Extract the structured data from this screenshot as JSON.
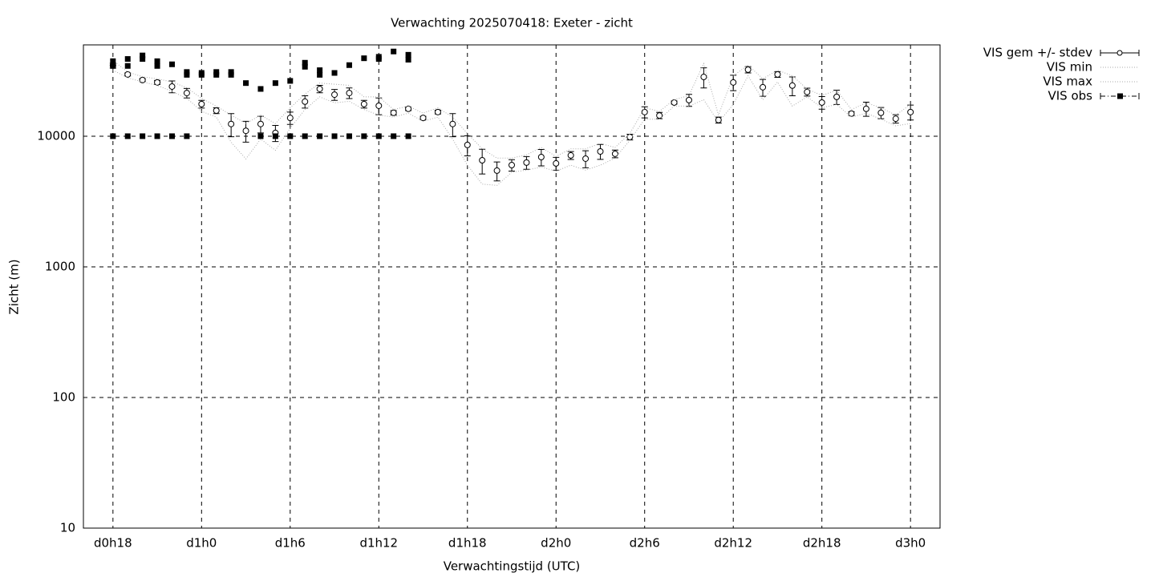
{
  "chart_data": {
    "type": "errorbar",
    "title": "Verwachting 2025070418: Exeter - zicht",
    "x_label": "Verwachtingstijd (UTC)",
    "y_label": "Zicht (m)",
    "log_y": true,
    "grid": true,
    "legend": "outside-top-right",
    "xlim": [
      16,
      74
    ],
    "ylim": [
      10,
      50000
    ],
    "xticks": [
      {
        "value": 18,
        "label": "d0h18"
      },
      {
        "value": 24,
        "label": "d1h0"
      },
      {
        "value": 30,
        "label": "d1h6"
      },
      {
        "value": 36,
        "label": "d1h12"
      },
      {
        "value": 42,
        "label": "d1h18"
      },
      {
        "value": 48,
        "label": "d2h0"
      },
      {
        "value": 54,
        "label": "d2h6"
      },
      {
        "value": 60,
        "label": "d2h12"
      },
      {
        "value": 66,
        "label": "d2h18"
      },
      {
        "value": 72,
        "label": "d3h0"
      }
    ],
    "yticks": [
      10,
      100,
      1000,
      10000
    ],
    "series": [
      {
        "name": "VIS gem +/- stdev",
        "color": "#000000",
        "style": "errorbar",
        "x": [
          18,
          19,
          20,
          21,
          22,
          23,
          24,
          25,
          26,
          27,
          28,
          29,
          30,
          31,
          32,
          33,
          34,
          35,
          36,
          37,
          38,
          39,
          40,
          41,
          42,
          43,
          44,
          45,
          46,
          47,
          48,
          49,
          50,
          51,
          52,
          53,
          54,
          55,
          56,
          57,
          58,
          59,
          60,
          61,
          62,
          63,
          64,
          65,
          66,
          67,
          68,
          69,
          70,
          71,
          72
        ],
        "values": [
          34700,
          29700,
          26900,
          25800,
          24000,
          21400,
          17600,
          15700,
          12400,
          11000,
          12400,
          10600,
          13800,
          18400,
          23000,
          20800,
          21400,
          17600,
          17100,
          15100,
          16200,
          13800,
          15300,
          12400,
          8570,
          6540,
          5450,
          6010,
          6280,
          6920,
          6190,
          7130,
          6730,
          7640,
          7330,
          9860,
          15300,
          14400,
          18100,
          18900,
          28400,
          13300,
          25800,
          32300,
          23700,
          29700,
          24400,
          21800,
          18100,
          20000,
          14900,
          16200,
          15100,
          13600,
          15300
        ],
        "errors": [
          1500,
          800,
          700,
          900,
          2500,
          1800,
          1200,
          800,
          2500,
          2000,
          1800,
          1500,
          1500,
          2000,
          1500,
          2000,
          2000,
          1200,
          2500,
          600,
          500,
          400,
          500,
          2500,
          1500,
          1400,
          900,
          600,
          700,
          1000,
          700,
          500,
          1000,
          1000,
          500,
          500,
          1500,
          800,
          500,
          2000,
          5000,
          700,
          3500,
          1800,
          3500,
          1500,
          4000,
          1500,
          2000,
          2500,
          500,
          2000,
          1500,
          1000,
          2000
        ]
      },
      {
        "name": "VIS min",
        "color": "#aaaaaa",
        "style": "dotted",
        "x": [
          18,
          19,
          20,
          21,
          22,
          23,
          24,
          25,
          26,
          27,
          28,
          29,
          30,
          31,
          32,
          33,
          34,
          35,
          36,
          37,
          38,
          39,
          40,
          41,
          42,
          43,
          44,
          45,
          46,
          47,
          48,
          49,
          50,
          51,
          52,
          53,
          54,
          55,
          56,
          57,
          58,
          59,
          60,
          61,
          62,
          63,
          64,
          65,
          66,
          67,
          68,
          69,
          70,
          71,
          72
        ],
        "values": [
          32000,
          28000,
          26000,
          24500,
          22000,
          19500,
          15500,
          14000,
          9000,
          6700,
          9500,
          7800,
          11500,
          16000,
          20000,
          18000,
          18500,
          16000,
          14500,
          14000,
          15000,
          13000,
          14000,
          9500,
          6000,
          4300,
          4200,
          5300,
          5500,
          5800,
          5400,
          6000,
          5500,
          6000,
          6800,
          9300,
          13500,
          13500,
          17000,
          17000,
          19000,
          12800,
          17500,
          29000,
          19000,
          26000,
          17000,
          20000,
          16500,
          17500,
          14000,
          15000,
          13500,
          12000,
          12500
        ]
      },
      {
        "name": "VIS max",
        "color": "#aaaaaa",
        "style": "dotted",
        "x": [
          18,
          19,
          20,
          21,
          22,
          23,
          24,
          25,
          26,
          27,
          28,
          29,
          30,
          31,
          32,
          33,
          34,
          35,
          36,
          37,
          38,
          39,
          40,
          41,
          42,
          43,
          44,
          45,
          46,
          47,
          48,
          49,
          50,
          51,
          52,
          53,
          54,
          55,
          56,
          57,
          58,
          59,
          60,
          61,
          62,
          63,
          64,
          65,
          66,
          67,
          68,
          69,
          70,
          71,
          72
        ],
        "values": [
          38000,
          31000,
          28500,
          27500,
          26000,
          23500,
          19500,
          17000,
          14500,
          12500,
          14500,
          12500,
          16500,
          21000,
          25500,
          25000,
          24500,
          20000,
          20000,
          16000,
          17000,
          15000,
          16500,
          14000,
          10500,
          8000,
          6800,
          6800,
          7200,
          8200,
          7000,
          8000,
          8000,
          8800,
          8200,
          10500,
          16500,
          15500,
          19000,
          20500,
          36000,
          14500,
          29000,
          35000,
          27500,
          32000,
          29000,
          23000,
          20500,
          22500,
          16000,
          18000,
          16500,
          14500,
          17500
        ]
      },
      {
        "name": "VIS obs",
        "color": "#000000",
        "style": "square",
        "x": [
          18,
          18,
          19,
          19,
          20,
          20,
          21,
          21,
          22,
          23,
          23,
          24,
          24,
          25,
          25,
          26,
          26,
          27,
          28,
          29,
          30,
          31,
          31,
          32,
          32,
          33,
          34,
          35,
          36,
          36,
          37,
          38,
          38,
          18,
          19,
          20,
          21,
          22,
          23,
          28,
          29,
          30,
          31,
          32,
          33,
          34,
          35,
          36,
          37,
          38
        ],
        "values": [
          37500,
          34500,
          39000,
          34500,
          41500,
          39000,
          37500,
          34500,
          35500,
          31000,
          29500,
          30500,
          29500,
          31000,
          29500,
          31000,
          29500,
          25500,
          23000,
          25500,
          26500,
          36500,
          34000,
          32000,
          29500,
          30500,
          35000,
          39500,
          40500,
          39000,
          44500,
          42000,
          38500,
          10000,
          10000,
          10000,
          10000,
          10000,
          10000,
          10000,
          10000,
          10000,
          10000,
          10000,
          10000,
          10000,
          10000,
          10000,
          10000,
          10000
        ]
      }
    ]
  }
}
